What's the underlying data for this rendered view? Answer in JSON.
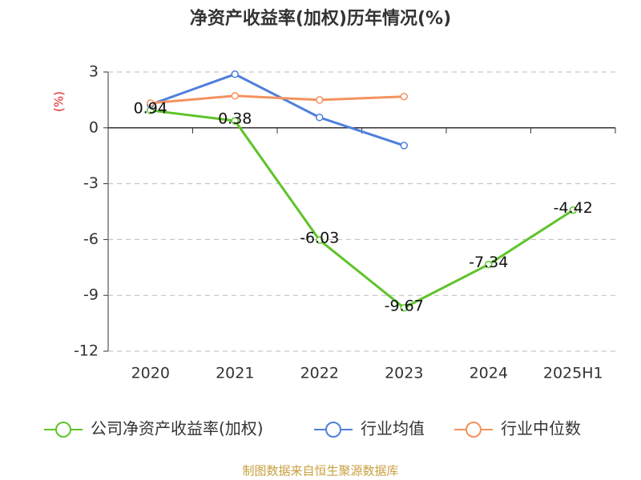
{
  "chart_data": {
    "type": "line",
    "title": "净资产收益率(加权)历年情况(%)",
    "y_label": "(%)",
    "source": "制图数据来自恒生聚源数据库",
    "categories": [
      "2020",
      "2021",
      "2022",
      "2023",
      "2024",
      "2025H1"
    ],
    "ylim": [
      -12,
      3
    ],
    "yticks": [
      3,
      0,
      -3,
      -6,
      -9,
      -12
    ],
    "grid": true,
    "legend": "bottom",
    "series": [
      {
        "name": "公司净资产收益率(加权)",
        "color": "#5ec42a",
        "values": [
          0.94,
          0.38,
          -6.03,
          -9.67,
          -7.34,
          -4.42
        ],
        "data_labels": true
      },
      {
        "name": "行业均值",
        "color": "#4f7fdd",
        "values": [
          1.25,
          2.88,
          0.56,
          -0.95,
          null,
          null
        ]
      },
      {
        "name": "行业中位数",
        "color": "#f4925f",
        "values": [
          1.33,
          1.72,
          1.5,
          1.68,
          null,
          null
        ]
      }
    ]
  }
}
